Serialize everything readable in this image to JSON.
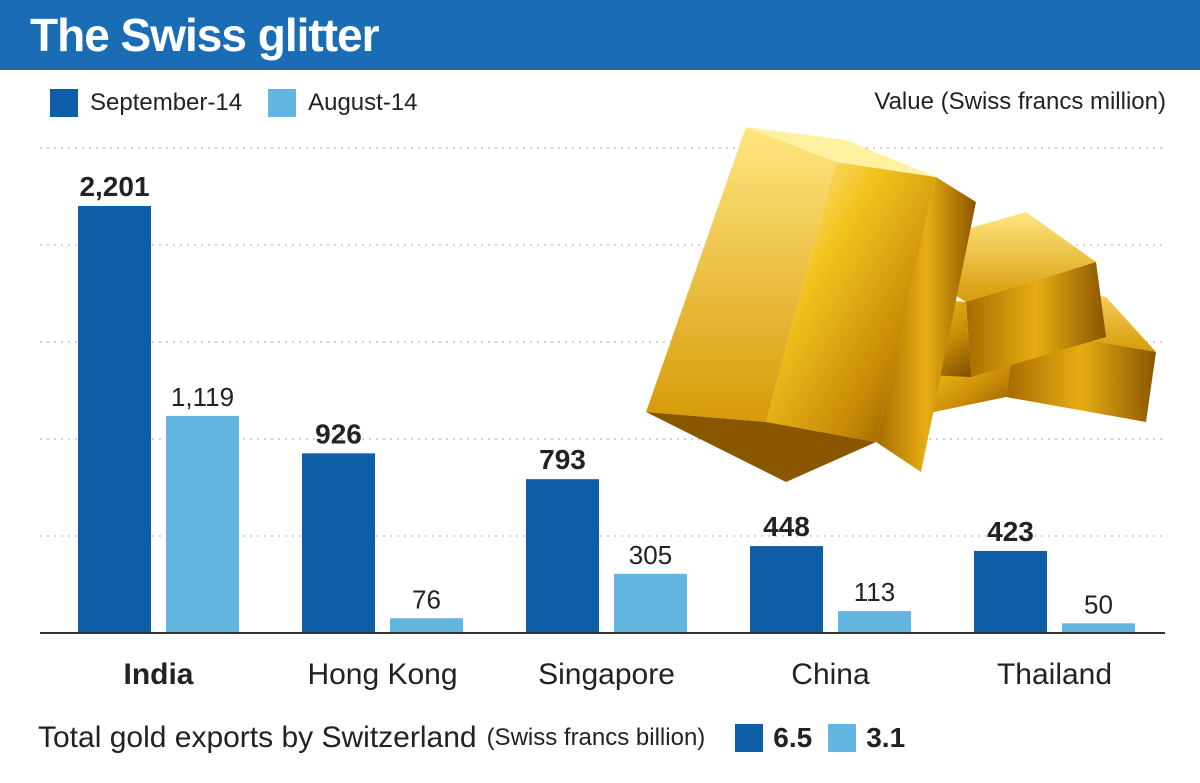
{
  "title": "The Swiss glitter",
  "legend": {
    "series1": "September-14",
    "series2": "August-14"
  },
  "units": "Value (Swiss francs million)",
  "colors": {
    "title_bg": "#1a6db5",
    "series1": "#0e5fa8",
    "series2": "#63b6df",
    "gridline": "#9aa8b5",
    "axis": "#333333"
  },
  "chart_data": {
    "type": "bar",
    "categories": [
      "India",
      "Hong Kong",
      "Singapore",
      "China",
      "Thailand"
    ],
    "series": [
      {
        "name": "September-14",
        "values": [
          2201,
          926,
          793,
          448,
          423
        ],
        "labels": [
          "2,201",
          "926",
          "793",
          "448",
          "423"
        ]
      },
      {
        "name": "August-14",
        "values": [
          1119,
          76,
          305,
          113,
          50
        ],
        "labels": [
          "1,119",
          "76",
          "305",
          "113",
          "50"
        ]
      }
    ],
    "ylabel": "Value (Swiss francs million)",
    "ylim": [
      0,
      2500
    ],
    "grid": true,
    "legend_position": "top-left",
    "bold_category": "India"
  },
  "footer": {
    "label": "Total gold exports by Switzerland",
    "unit": "(Swiss francs billion)",
    "sep_value": "6.5",
    "aug_value": "3.1"
  }
}
